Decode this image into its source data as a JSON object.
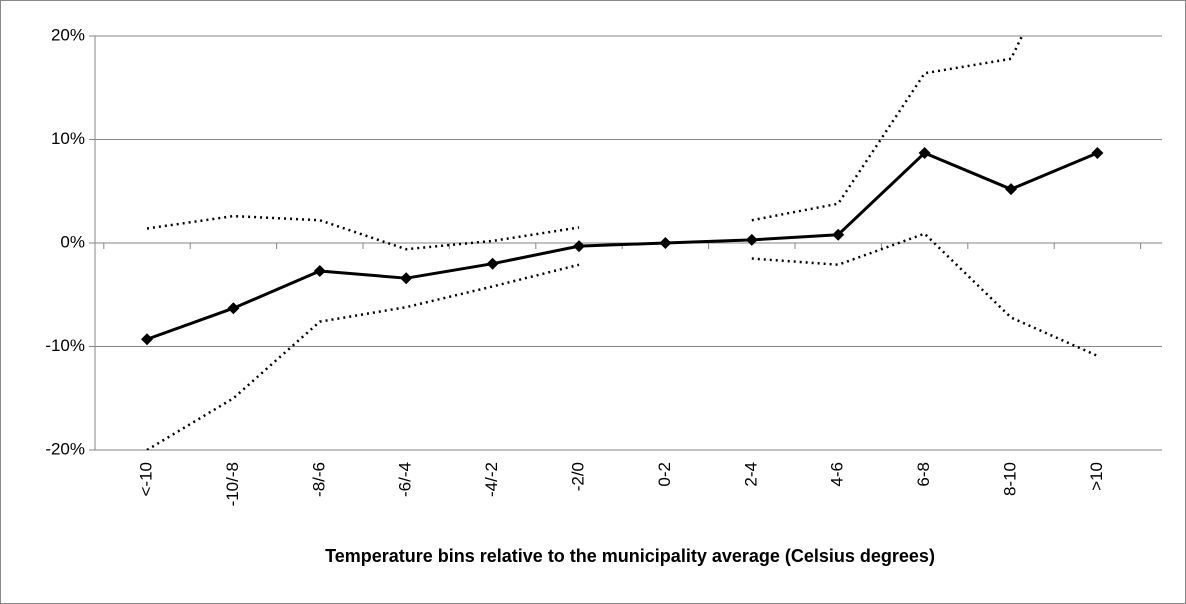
{
  "chart_data": {
    "type": "line",
    "x_label": "Temperature bins relative to the municipality average (Celsius degrees)",
    "categories": [
      "<-10",
      "-10/-8",
      "-8/-6",
      "-6/-4",
      "-4/-2",
      "-2/0",
      "0-2",
      "2-4",
      "4-6",
      "6-8",
      "8-10",
      ">10"
    ],
    "series": [
      {
        "color": "#000000",
        "style": "solid",
        "marker": "diamond",
        "values": [
          -9.3,
          -6.3,
          -2.7,
          -3.4,
          -2.0,
          -0.3,
          0,
          0.3,
          0.8,
          8.7,
          5.2,
          8.7
        ]
      },
      {
        "color": "#000000",
        "style": "dotted",
        "values": [
          1.4,
          2.6,
          2.2,
          -0.6,
          0.2,
          1.5,
          null,
          2.2,
          3.8,
          16.4,
          17.8,
          35
        ]
      },
      {
        "color": "#000000",
        "style": "dotted",
        "values": [
          -20,
          -15,
          -7.6,
          -6.2,
          -4.2,
          -2.1,
          null,
          -1.5,
          -2.1,
          0.9,
          -7.2,
          -10.9
        ]
      }
    ],
    "ylim": [
      -20,
      20
    ],
    "yticks": [
      {
        "value": -20,
        "label": "-20%"
      },
      {
        "value": -10,
        "label": "-10%"
      },
      {
        "value": 0,
        "label": "0%"
      },
      {
        "value": 10,
        "label": "10%"
      },
      {
        "value": 20,
        "label": "20%"
      }
    ],
    "grid": true
  }
}
